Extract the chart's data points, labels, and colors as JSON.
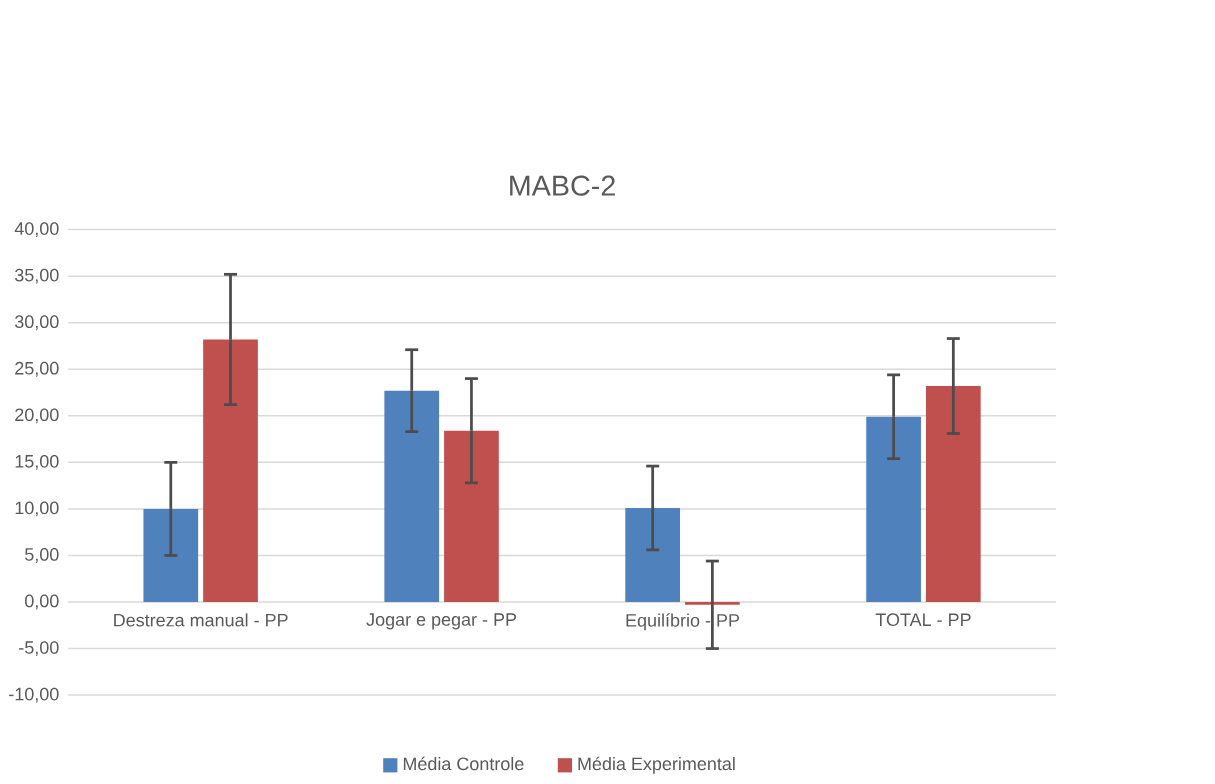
{
  "chart_data": {
    "type": "bar",
    "title": "MABC-2",
    "categories": [
      "Destreza manual - PP",
      "Jogar e pegar - PP",
      "Equilíbrio - PP",
      "TOTAL - PP"
    ],
    "series": [
      {
        "name": "Média Controle",
        "color": "#4f81bd",
        "values": [
          10.0,
          22.7,
          10.1,
          19.9
        ],
        "errors": [
          5.0,
          4.4,
          4.5,
          4.5
        ]
      },
      {
        "name": "Média Experimental",
        "color": "#c0504d",
        "values": [
          28.2,
          18.4,
          -0.3,
          23.2
        ],
        "errors": [
          7.0,
          5.6,
          4.7,
          5.1
        ]
      }
    ],
    "ylim": [
      -10,
      40
    ],
    "yticks": [
      {
        "value": -10,
        "label": "-10,00"
      },
      {
        "value": -5,
        "label": "-5,00"
      },
      {
        "value": 0,
        "label": "0,00"
      },
      {
        "value": 5,
        "label": "5,00"
      },
      {
        "value": 10,
        "label": "10,00"
      },
      {
        "value": 15,
        "label": "15,00"
      },
      {
        "value": 20,
        "label": "20,00"
      },
      {
        "value": 25,
        "label": "25,00"
      },
      {
        "value": 30,
        "label": "30,00"
      },
      {
        "value": 35,
        "label": "35,00"
      },
      {
        "value": 40,
        "label": "40,00"
      }
    ],
    "grid": "y",
    "legend": "bottom"
  }
}
